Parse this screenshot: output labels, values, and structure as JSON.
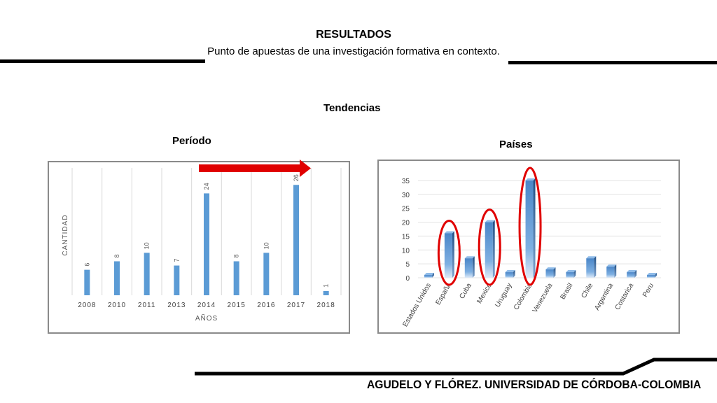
{
  "header": {
    "title": "RESULTADOS",
    "subtitle": "Punto de apuestas de una investigación formativa en contexto."
  },
  "section_title": "Tendencias",
  "left_panel_title": "Período",
  "right_panel_title": "Países",
  "footer": "AGUDELO Y FLÓREZ. UNIVERSIDAD DE CÓRDOBA-COLOMBIA",
  "colors": {
    "bar": "#5b9bd5",
    "arrow": "#e00000",
    "highlight": "#e00000",
    "rule": "#000000"
  },
  "chart_data": [
    {
      "type": "bar",
      "categories": [
        "2008",
        "2010",
        "2011",
        "2013",
        "2014",
        "2015",
        "2016",
        "2017",
        "2018"
      ],
      "values": [
        6,
        8,
        10,
        7,
        24,
        8,
        10,
        26,
        1
      ],
      "xlabel": "AÑOS",
      "ylabel": "CANTIDAD",
      "ylim": [
        0,
        30
      ],
      "grid": "vertical",
      "data_labels": true
    },
    {
      "type": "bar",
      "categories": [
        "Estados Unidos",
        "España",
        "Cuba",
        "Mexico",
        "Uruguay",
        "Colombia",
        "Venezuela",
        "Brasil",
        "Chile",
        "Argentina",
        "Costarica",
        "Peru"
      ],
      "values": [
        1,
        16,
        7,
        20,
        2,
        35,
        3,
        2,
        7,
        4,
        2,
        1
      ],
      "ylim": [
        0,
        35
      ],
      "yticks": [
        0,
        5,
        10,
        15,
        20,
        25,
        30,
        35
      ],
      "grid": "horizontal",
      "highlighted": [
        "España",
        "Mexico",
        "Colombia"
      ]
    }
  ]
}
